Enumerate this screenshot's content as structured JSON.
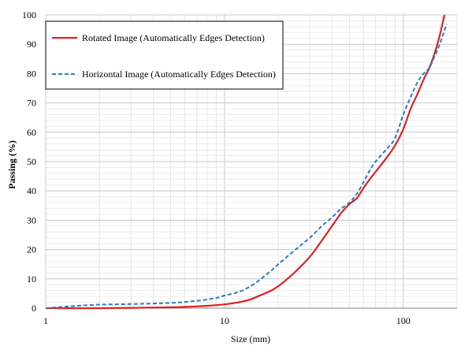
{
  "chart_data": {
    "type": "line",
    "title": "",
    "xlabel": "Size (mm)",
    "ylabel": "Passing (%)",
    "xscale": "log",
    "xlim": [
      1,
      200
    ],
    "ylim": [
      0,
      100
    ],
    "x_ticks": [
      "1",
      "10",
      "100"
    ],
    "y_ticks": [
      "0",
      "10",
      "20",
      "30",
      "40",
      "50",
      "60",
      "70",
      "80",
      "90",
      "100"
    ],
    "grid": true,
    "legend_position": "top-left",
    "series": [
      {
        "name": "Rotated Image (Automatically Edges Detection)",
        "color": "#e02020",
        "style": "solid",
        "x": [
          1,
          2,
          5,
          8,
          10,
          12,
          14,
          16,
          18,
          20,
          22,
          25,
          30,
          35,
          40,
          45,
          50,
          55,
          60,
          65,
          70,
          80,
          90,
          100,
          110,
          120,
          130,
          140,
          150,
          160,
          170
        ],
        "y": [
          0,
          0,
          0.3,
          0.8,
          1.3,
          2,
          3,
          4.5,
          5.8,
          7.5,
          9.5,
          12.5,
          17.5,
          23,
          28,
          32.5,
          35.5,
          37.5,
          41,
          44,
          46.5,
          51,
          55.5,
          61,
          68,
          73,
          78,
          82,
          87,
          93,
          100
        ]
      },
      {
        "name": "Horizontal Image (Automatically Edges Detection)",
        "color": "#2b7bbf",
        "style": "dashed",
        "x": [
          1,
          1.5,
          2,
          3,
          5,
          7,
          9,
          10,
          12,
          14,
          16,
          18,
          20,
          25,
          30,
          35,
          40,
          45,
          50,
          55,
          60,
          65,
          70,
          80,
          90,
          100,
          110,
          120,
          130,
          140,
          150,
          160,
          175
        ],
        "y": [
          0,
          0.8,
          1.2,
          1.4,
          1.8,
          2.5,
          3.5,
          4.3,
          5.5,
          7.5,
          10,
          12.5,
          15,
          20,
          24,
          28,
          31,
          34,
          36,
          39,
          43,
          47,
          50,
          54,
          58,
          66,
          72,
          77,
          80,
          82,
          86,
          90,
          97
        ]
      }
    ]
  }
}
